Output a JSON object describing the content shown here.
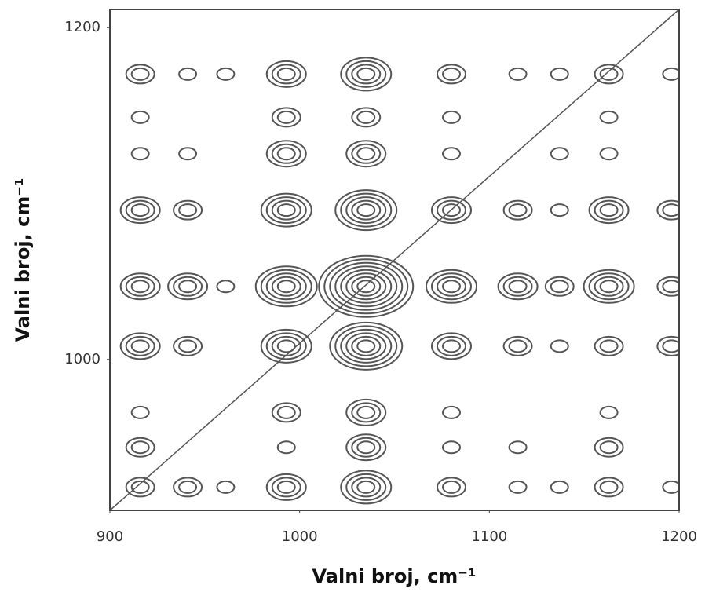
{
  "chart_data": {
    "type": "contour",
    "xlabel": "Valni broj, cm⁻¹",
    "ylabel": "Valni broj, cm⁻¹",
    "xlim": [
      900,
      1200
    ],
    "ylim": [
      909,
      1211
    ],
    "xticks": [
      900,
      1000,
      1100,
      1200
    ],
    "yticks": [
      1000,
      1200
    ],
    "x": [
      916,
      941,
      961,
      993,
      1035,
      1080,
      1115,
      1137,
      1163,
      1196
    ],
    "y": [
      1172,
      1146,
      1124,
      1090,
      1044,
      1008,
      968,
      947,
      923
    ],
    "z": [
      [
        2,
        1,
        1,
        3,
        4,
        2,
        1,
        1,
        2,
        1
      ],
      [
        1,
        0,
        0,
        2,
        2,
        1,
        0,
        0,
        1,
        0
      ],
      [
        1,
        1,
        0,
        3,
        3,
        1,
        0,
        1,
        1,
        0
      ],
      [
        3,
        2,
        0,
        4,
        5,
        3,
        2,
        1,
        3,
        2
      ],
      [
        3,
        3,
        1,
        5,
        8,
        4,
        3,
        2,
        4,
        2
      ],
      [
        3,
        2,
        0,
        4,
        6,
        3,
        2,
        1,
        2,
        2
      ],
      [
        1,
        0,
        0,
        2,
        3,
        1,
        0,
        0,
        1,
        0
      ],
      [
        2,
        0,
        0,
        1,
        3,
        1,
        1,
        0,
        2,
        0
      ],
      [
        2,
        2,
        1,
        3,
        4,
        2,
        1,
        1,
        2,
        1
      ]
    ],
    "color": "#dcdcdc",
    "diagonal": true
  }
}
